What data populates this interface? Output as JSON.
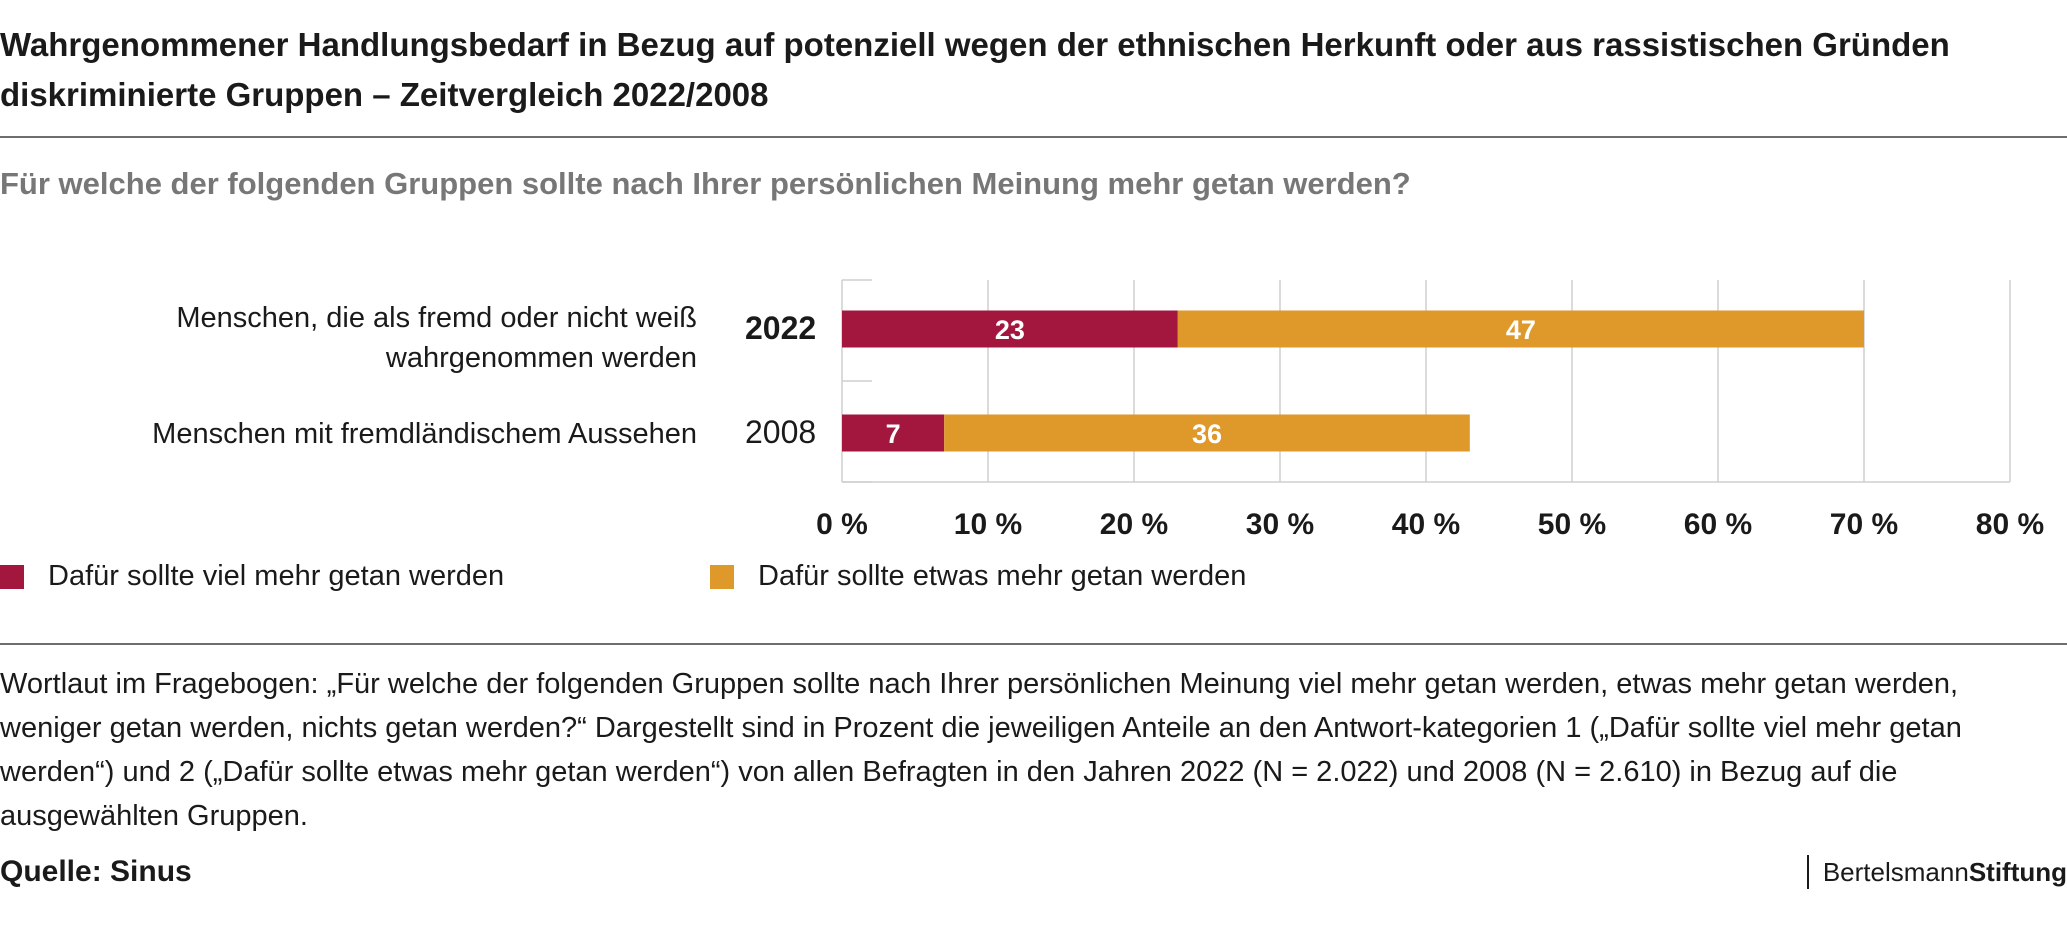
{
  "header": {
    "title": "Wahrgenommener Handlungsbedarf in Bezug auf potenziell wegen der ethnischen Herkunft oder aus rassistischen Gründen diskriminierte Gruppen – Zeitvergleich 2022/2008",
    "subtitle": "Für welche der folgenden Gruppen sollte nach Ihrer persönlichen Meinung mehr getan werden?"
  },
  "rows": [
    {
      "label": "Menschen, die als fremd oder nicht weiß wahrgenommen werden",
      "year": "2022"
    },
    {
      "label": "Menschen mit fremdländischem Aussehen",
      "year": "2008"
    }
  ],
  "legend": [
    {
      "label": "Dafür sollte viel mehr getan werden",
      "color": "#a3173f"
    },
    {
      "label": "Dafür sollte etwas mehr getan werden",
      "color": "#df982a"
    }
  ],
  "chart_data": {
    "type": "bar",
    "orientation": "horizontal",
    "stacked": true,
    "categories": [
      "2022",
      "2008"
    ],
    "series": [
      {
        "name": "Dafür sollte viel mehr getan werden",
        "values": [
          23,
          7
        ],
        "color": "#a3173f"
      },
      {
        "name": "Dafür sollte etwas mehr getan werden",
        "values": [
          47,
          36
        ],
        "color": "#df982a"
      }
    ],
    "xlim": [
      0,
      80
    ],
    "xticks": [
      "0 %",
      "10 %",
      "20 %",
      "30 %",
      "40 %",
      "50 %",
      "60 %",
      "70 %",
      "80 %"
    ],
    "grid": true,
    "legend_position": "bottom-left"
  },
  "footer": {
    "note": "Wortlaut im Fragebogen: „Für welche der folgenden Gruppen sollte nach Ihrer persönlichen Meinung viel mehr getan werden, etwas mehr getan werden, weniger getan werden, nichts getan werden?“ Dargestellt sind in Prozent die jeweiligen Anteile an den Antwort-kategorien 1 („Dafür sollte viel mehr getan werden“) und 2 („Dafür sollte etwas mehr getan werden“) von allen Befragten in den Jahren 2022 (N = 2.022) und 2008 (N = 2.610) in Bezug auf die ausgewählten Gruppen.",
    "source": "Quelle: Sinus",
    "brand_part1": "Bertelsmann",
    "brand_part2": "Stiftung"
  }
}
